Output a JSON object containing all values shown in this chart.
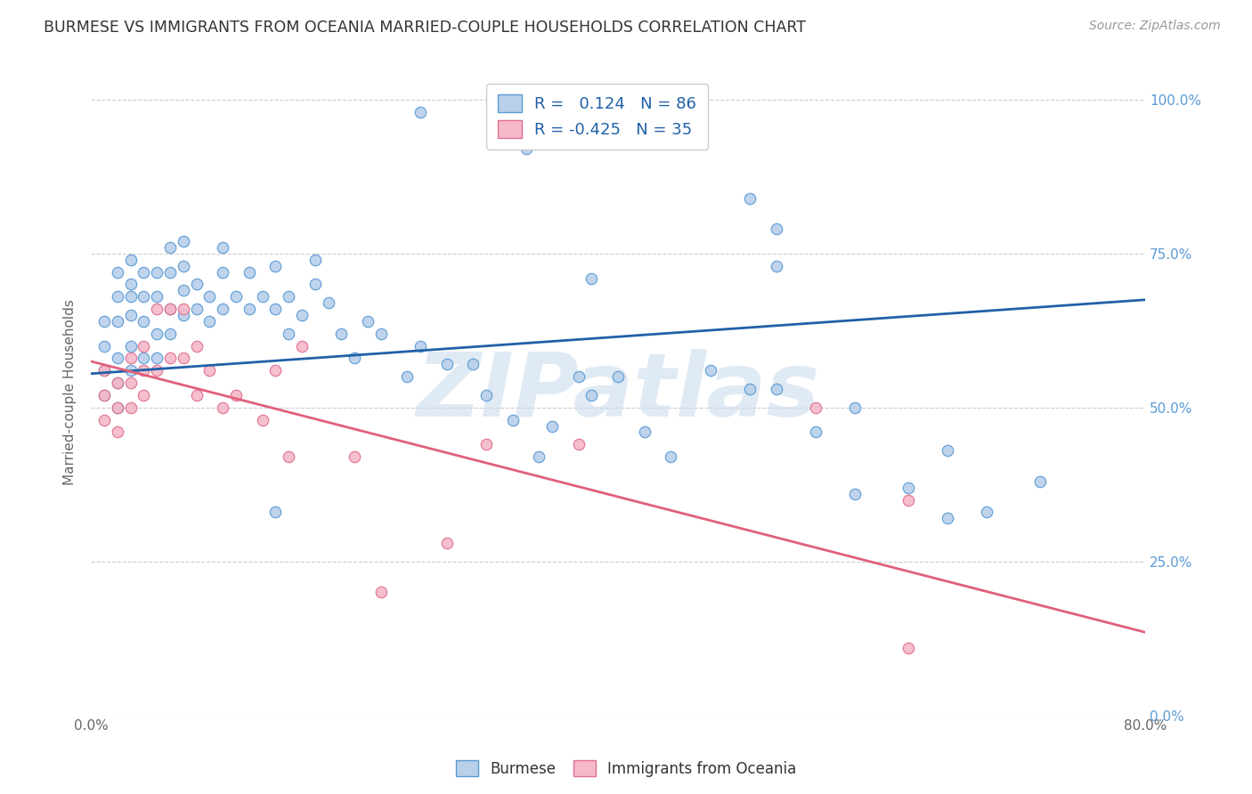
{
  "title": "BURMESE VS IMMIGRANTS FROM OCEANIA MARRIED-COUPLE HOUSEHOLDS CORRELATION CHART",
  "source": "Source: ZipAtlas.com",
  "ylabel": "Married-couple Households",
  "watermark": "ZIPatlas",
  "blue_R": 0.124,
  "blue_N": 86,
  "pink_R": -0.425,
  "pink_N": 35,
  "x_min": 0.0,
  "x_max": 0.8,
  "y_min": 0.0,
  "y_max": 1.05,
  "yticks": [
    0.0,
    0.25,
    0.5,
    0.75,
    1.0
  ],
  "ytick_labels": [
    "0.0%",
    "25.0%",
    "50.0%",
    "75.0%",
    "100.0%"
  ],
  "xticks": [
    0.0,
    0.1,
    0.2,
    0.3,
    0.4,
    0.5,
    0.6,
    0.7,
    0.8
  ],
  "xtick_labels": [
    "0.0%",
    "",
    "",
    "",
    "",
    "",
    "",
    "",
    "80.0%"
  ],
  "blue_color": "#b8d0ea",
  "blue_edge_color": "#5b9bd5",
  "pink_color": "#f4b8c8",
  "pink_edge_color": "#e07090",
  "blue_line_color": "#2060a8",
  "pink_line_color": "#e0607a",
  "blue_scatter_x": [
    0.01,
    0.01,
    0.01,
    0.01,
    0.02,
    0.02,
    0.02,
    0.02,
    0.02,
    0.02,
    0.03,
    0.03,
    0.03,
    0.03,
    0.03,
    0.03,
    0.04,
    0.04,
    0.04,
    0.04,
    0.05,
    0.05,
    0.05,
    0.05,
    0.06,
    0.06,
    0.06,
    0.06,
    0.07,
    0.07,
    0.07,
    0.07,
    0.08,
    0.08,
    0.09,
    0.09,
    0.1,
    0.1,
    0.1,
    0.11,
    0.12,
    0.12,
    0.13,
    0.14,
    0.14,
    0.15,
    0.15,
    0.16,
    0.17,
    0.17,
    0.18,
    0.19,
    0.2,
    0.21,
    0.22,
    0.24,
    0.25,
    0.27,
    0.29,
    0.3,
    0.32,
    0.34,
    0.35,
    0.37,
    0.38,
    0.4,
    0.42,
    0.44,
    0.47,
    0.5,
    0.52,
    0.55,
    0.58,
    0.62,
    0.65,
    0.68,
    0.72,
    0.25,
    0.33,
    0.5,
    0.52,
    0.52,
    0.38,
    0.58,
    0.65,
    0.14
  ],
  "blue_scatter_y": [
    0.56,
    0.52,
    0.6,
    0.64,
    0.54,
    0.58,
    0.64,
    0.68,
    0.72,
    0.5,
    0.56,
    0.6,
    0.65,
    0.7,
    0.74,
    0.68,
    0.58,
    0.64,
    0.68,
    0.72,
    0.58,
    0.62,
    0.68,
    0.72,
    0.62,
    0.66,
    0.72,
    0.76,
    0.65,
    0.69,
    0.73,
    0.77,
    0.66,
    0.7,
    0.64,
    0.68,
    0.66,
    0.72,
    0.76,
    0.68,
    0.66,
    0.72,
    0.68,
    0.66,
    0.73,
    0.62,
    0.68,
    0.65,
    0.7,
    0.74,
    0.67,
    0.62,
    0.58,
    0.64,
    0.62,
    0.55,
    0.6,
    0.57,
    0.57,
    0.52,
    0.48,
    0.42,
    0.47,
    0.55,
    0.52,
    0.55,
    0.46,
    0.42,
    0.56,
    0.53,
    0.53,
    0.46,
    0.36,
    0.37,
    0.43,
    0.33,
    0.38,
    0.98,
    0.92,
    0.84,
    0.79,
    0.73,
    0.71,
    0.5,
    0.32,
    0.33
  ],
  "pink_scatter_x": [
    0.01,
    0.01,
    0.01,
    0.02,
    0.02,
    0.02,
    0.03,
    0.03,
    0.03,
    0.04,
    0.04,
    0.04,
    0.05,
    0.05,
    0.06,
    0.06,
    0.07,
    0.07,
    0.08,
    0.08,
    0.09,
    0.1,
    0.11,
    0.13,
    0.14,
    0.15,
    0.16,
    0.2,
    0.22,
    0.27,
    0.3,
    0.37,
    0.55,
    0.62,
    0.62
  ],
  "pink_scatter_y": [
    0.56,
    0.52,
    0.48,
    0.54,
    0.5,
    0.46,
    0.58,
    0.54,
    0.5,
    0.6,
    0.56,
    0.52,
    0.66,
    0.56,
    0.66,
    0.58,
    0.66,
    0.58,
    0.6,
    0.52,
    0.56,
    0.5,
    0.52,
    0.48,
    0.56,
    0.42,
    0.6,
    0.42,
    0.2,
    0.28,
    0.44,
    0.44,
    0.5,
    0.35,
    0.11
  ],
  "blue_line_x": [
    0.0,
    0.8
  ],
  "blue_line_y": [
    0.555,
    0.675
  ],
  "pink_line_x": [
    0.0,
    0.8
  ],
  "pink_line_y": [
    0.575,
    0.135
  ],
  "bg_color": "#ffffff",
  "grid_color": "#cccccc",
  "title_color": "#333333",
  "axis_label_color": "#666666",
  "right_tick_color": "#5b9bd5",
  "watermark_color": "#ccdcee"
}
